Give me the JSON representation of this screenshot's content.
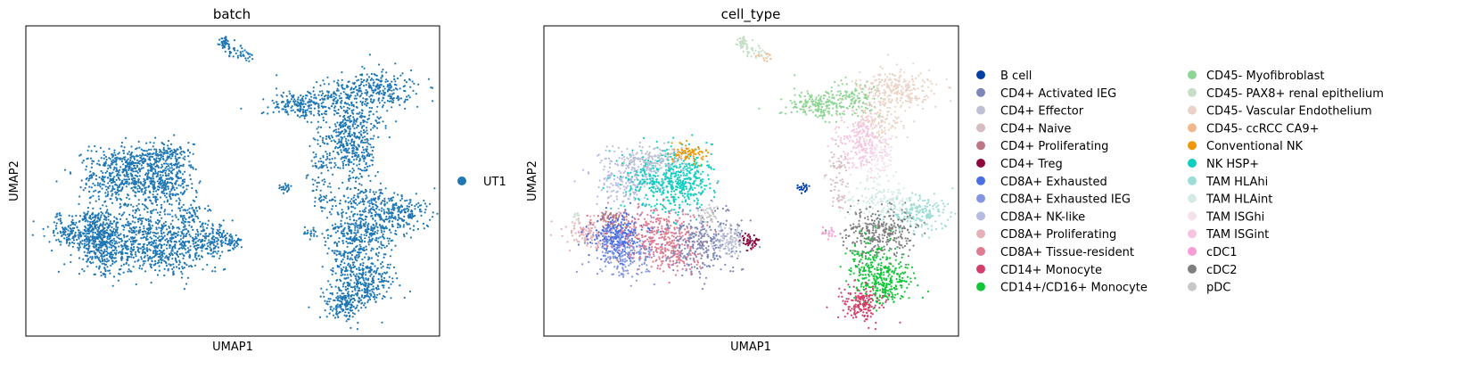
{
  "chart_data": [
    {
      "type": "scatter",
      "title": "batch",
      "xlabel": "UMAP1",
      "ylabel": "UMAP2",
      "grid": false,
      "legend_position": "right",
      "series": [
        {
          "name": "UT1",
          "color": "#1f77b4"
        }
      ]
    },
    {
      "type": "scatter",
      "title": "cell_type",
      "xlabel": "UMAP1",
      "ylabel": "UMAP2",
      "grid": false,
      "legend_position": "right",
      "series": [
        {
          "name": "B cell",
          "color": "#023fa5"
        },
        {
          "name": "CD4+ Activated IEG",
          "color": "#7d87b9"
        },
        {
          "name": "CD4+ Effector",
          "color": "#bec1d4"
        },
        {
          "name": "CD4+ Naive",
          "color": "#d6bcc0"
        },
        {
          "name": "CD4+ Proliferating",
          "color": "#bb7784"
        },
        {
          "name": "CD4+ Treg",
          "color": "#8e063b"
        },
        {
          "name": "CD8A+ Exhausted",
          "color": "#4a6fe3"
        },
        {
          "name": "CD8A+ Exhausted IEG",
          "color": "#8595e1"
        },
        {
          "name": "CD8A+ NK-like",
          "color": "#b5bbe3"
        },
        {
          "name": "CD8A+ Proliferating",
          "color": "#e6afb9"
        },
        {
          "name": "CD8A+ Tissue-resident",
          "color": "#e07b91"
        },
        {
          "name": "CD14+ Monocyte",
          "color": "#d33f6a"
        },
        {
          "name": "CD14+/CD16+ Monocyte",
          "color": "#11c638"
        },
        {
          "name": "CD45- Myofibroblast",
          "color": "#8dd593"
        },
        {
          "name": "CD45- PAX8+ renal epithelium",
          "color": "#c6dec7"
        },
        {
          "name": "CD45- Vascular Endothelium",
          "color": "#ead3c6"
        },
        {
          "name": "CD45- ccRCC CA9+",
          "color": "#f0b98d"
        },
        {
          "name": "Conventional NK",
          "color": "#ef9708"
        },
        {
          "name": "NK HSP+",
          "color": "#0fcfc0"
        },
        {
          "name": "TAM HLAhi",
          "color": "#9cded6"
        },
        {
          "name": "TAM HLAint",
          "color": "#d5eae7"
        },
        {
          "name": "TAM ISGhi",
          "color": "#f3e1eb"
        },
        {
          "name": "TAM ISGint",
          "color": "#f6c4e1"
        },
        {
          "name": "cDC1",
          "color": "#f79cd4"
        },
        {
          "name": "cDC2",
          "color": "#7f7f7f"
        },
        {
          "name": "pDC",
          "color": "#c7c7c7"
        }
      ]
    }
  ]
}
